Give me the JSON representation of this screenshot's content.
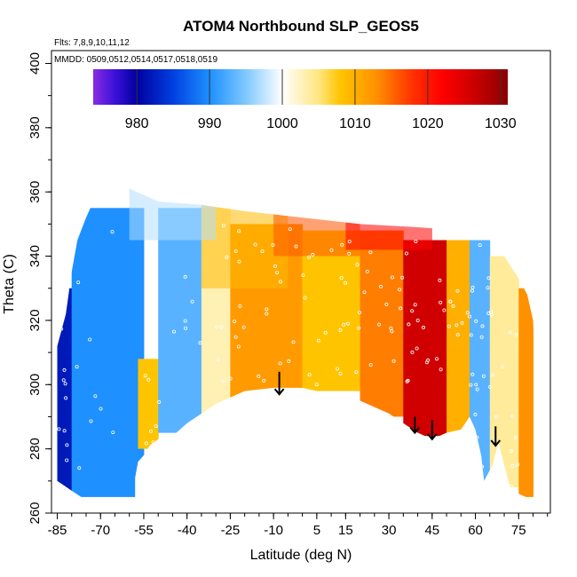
{
  "chart_data": {
    "type": "heatmap",
    "title": "ATOM4 Northbound SLP_GEOS5",
    "subtitle_flights": "Flts: 7,8,9,10,11,12",
    "subtitle_dates": "MMDD: 0509,0512,0514,0517,0518,0519",
    "xlabel": "Latitude (deg N)",
    "ylabel": "Theta (C)",
    "xlim": [
      -87,
      86
    ],
    "ylim": [
      260,
      404
    ],
    "x_ticks": [
      -85,
      -70,
      -55,
      -40,
      -25,
      -10,
      5,
      15,
      30,
      45,
      60,
      75
    ],
    "y_ticks": [
      260,
      280,
      300,
      320,
      340,
      360,
      380,
      400
    ],
    "colorbar": {
      "range": [
        974,
        1031
      ],
      "ticks": [
        980,
        990,
        1000,
        1010,
        1020,
        1030
      ],
      "stops": [
        {
          "value": 974,
          "color": "#8a2be2"
        },
        {
          "value": 977,
          "color": "#3a10d8"
        },
        {
          "value": 980,
          "color": "#0000a0"
        },
        {
          "value": 985,
          "color": "#0040e0"
        },
        {
          "value": 990,
          "color": "#1e90ff"
        },
        {
          "value": 995,
          "color": "#7ec8ff"
        },
        {
          "value": 1000,
          "color": "#ffffff"
        },
        {
          "value": 1005,
          "color": "#ffe680"
        },
        {
          "value": 1008,
          "color": "#ffc400"
        },
        {
          "value": 1013,
          "color": "#ff9000"
        },
        {
          "value": 1018,
          "color": "#ff3000"
        },
        {
          "value": 1022,
          "color": "#ff0000"
        },
        {
          "value": 1026,
          "color": "#d00000"
        },
        {
          "value": 1031,
          "color": "#8b0000"
        }
      ]
    },
    "regions": [
      {
        "x": [
          -85,
          -80
        ],
        "y_range": [
          265,
          330
        ],
        "value": 982
      },
      {
        "x": [
          -80,
          -55
        ],
        "y_range": [
          265,
          355
        ],
        "value": 990
      },
      {
        "x": [
          -57,
          -50
        ],
        "y_range": [
          280,
          308
        ],
        "value": 1008
      },
      {
        "x": [
          -50,
          -35
        ],
        "y_range": [
          285,
          355
        ],
        "value": 993
      },
      {
        "x": [
          -35,
          -25
        ],
        "y_range": [
          290,
          355
        ],
        "value": 1003
      },
      {
        "x": [
          -25,
          0
        ],
        "y_range": [
          295,
          350
        ],
        "value": 1012
      },
      {
        "x": [
          0,
          20
        ],
        "y_range": [
          298,
          348
        ],
        "value": 1008
      },
      {
        "x": [
          20,
          35
        ],
        "y_range": [
          290,
          348
        ],
        "value": 1014
      },
      {
        "x": [
          35,
          50
        ],
        "y_range": [
          284,
          345
        ],
        "value": 1026
      },
      {
        "x": [
          50,
          58
        ],
        "y_range": [
          283,
          345
        ],
        "value": 1010
      },
      {
        "x": [
          58,
          65
        ],
        "y_range": [
          270,
          345
        ],
        "value": 993
      },
      {
        "x": [
          65,
          75
        ],
        "y_range": [
          268,
          340
        ],
        "value": 1004
      },
      {
        "x": [
          75,
          80
        ],
        "y_range": [
          265,
          330
        ],
        "value": 1013
      }
    ],
    "arrows_latitude": [
      -8,
      39,
      45,
      67
    ],
    "arrows_theta": [
      [
        304,
        297
      ],
      [
        290,
        285
      ],
      [
        289,
        283
      ],
      [
        287,
        281
      ]
    ]
  }
}
